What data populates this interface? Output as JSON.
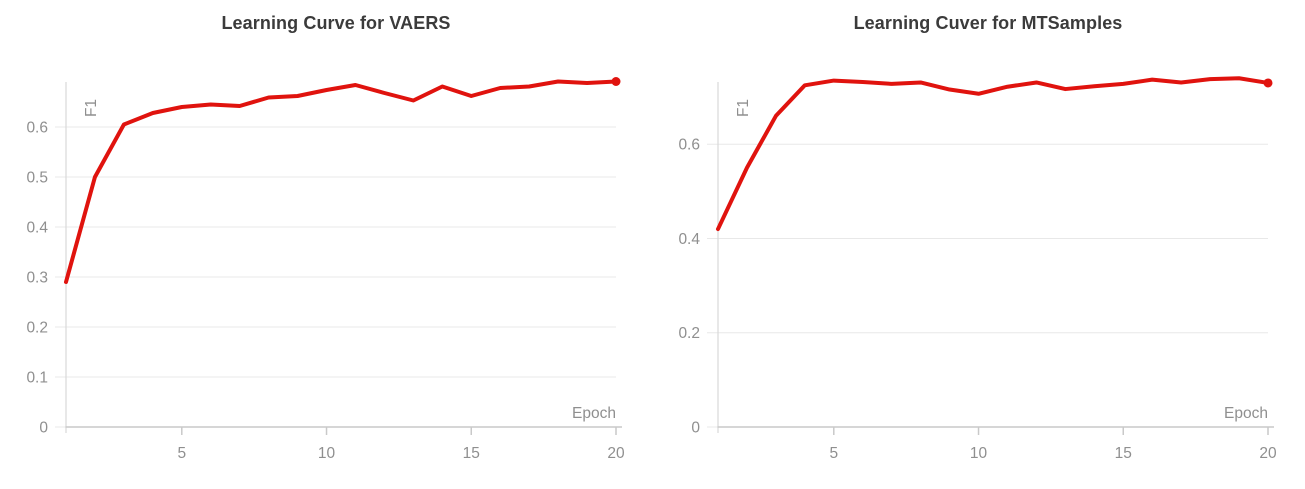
{
  "page": {
    "background": "#ffffff"
  },
  "colors": {
    "accent_red": "#e0130e",
    "title_text": "#3b3b3b",
    "tick_text": "#8f8f8f",
    "gridline": "#e8e8e8",
    "axis_line": "#c9c9c9",
    "y_axis_line": "#d9d9d9",
    "background": "#ffffff"
  },
  "chart_data": [
    {
      "type": "line",
      "title": "Learning Curve for VAERS",
      "xlabel": "Epoch",
      "ylabel": "F1",
      "line_color": "#e0130e",
      "legend": "none",
      "grid": "horizontal",
      "end_marker": true,
      "xlim": [
        1,
        20
      ],
      "ylim": [
        0,
        0.69
      ],
      "x": [
        1,
        2,
        3,
        4,
        5,
        6,
        7,
        8,
        9,
        10,
        11,
        12,
        13,
        14,
        15,
        16,
        17,
        18,
        19,
        20
      ],
      "values": [
        0.29,
        0.5,
        0.605,
        0.628,
        0.64,
        0.645,
        0.642,
        0.659,
        0.662,
        0.674,
        0.684,
        0.668,
        0.653,
        0.681,
        0.662,
        0.678,
        0.681,
        0.691,
        0.688,
        0.691
      ],
      "x_ticks": [
        {
          "value": 5,
          "label": "5"
        },
        {
          "value": 10,
          "label": "10"
        },
        {
          "value": 15,
          "label": "15"
        },
        {
          "value": 20,
          "label": "20"
        }
      ],
      "y_ticks": [
        {
          "value": 0,
          "label": "0"
        },
        {
          "value": 0.1,
          "label": "0.1"
        },
        {
          "value": 0.2,
          "label": "0.2"
        },
        {
          "value": 0.3,
          "label": "0.3"
        },
        {
          "value": 0.4,
          "label": "0.4"
        },
        {
          "value": 0.5,
          "label": "0.5"
        },
        {
          "value": 0.6,
          "label": "0.6"
        }
      ]
    },
    {
      "type": "line",
      "title": "Learning Cuver for MTSamples",
      "xlabel": "Epoch",
      "ylabel": "F1",
      "line_color": "#e0130e",
      "legend": "none",
      "grid": "horizontal",
      "end_marker": true,
      "xlim": [
        1,
        20
      ],
      "ylim": [
        0,
        0.732
      ],
      "x": [
        1,
        2,
        3,
        4,
        5,
        6,
        7,
        8,
        9,
        10,
        11,
        12,
        13,
        14,
        15,
        16,
        17,
        18,
        19,
        20
      ],
      "values": [
        0.42,
        0.55,
        0.66,
        0.725,
        0.735,
        0.732,
        0.728,
        0.731,
        0.716,
        0.707,
        0.722,
        0.731,
        0.717,
        0.723,
        0.728,
        0.737,
        0.731,
        0.738,
        0.74,
        0.73
      ],
      "x_ticks": [
        {
          "value": 5,
          "label": "5"
        },
        {
          "value": 10,
          "label": "10"
        },
        {
          "value": 15,
          "label": "15"
        },
        {
          "value": 20,
          "label": "20"
        }
      ],
      "y_ticks": [
        {
          "value": 0,
          "label": "0"
        },
        {
          "value": 0.2,
          "label": "0.2"
        },
        {
          "value": 0.4,
          "label": "0.4"
        },
        {
          "value": 0.6,
          "label": "0.6"
        }
      ]
    }
  ]
}
